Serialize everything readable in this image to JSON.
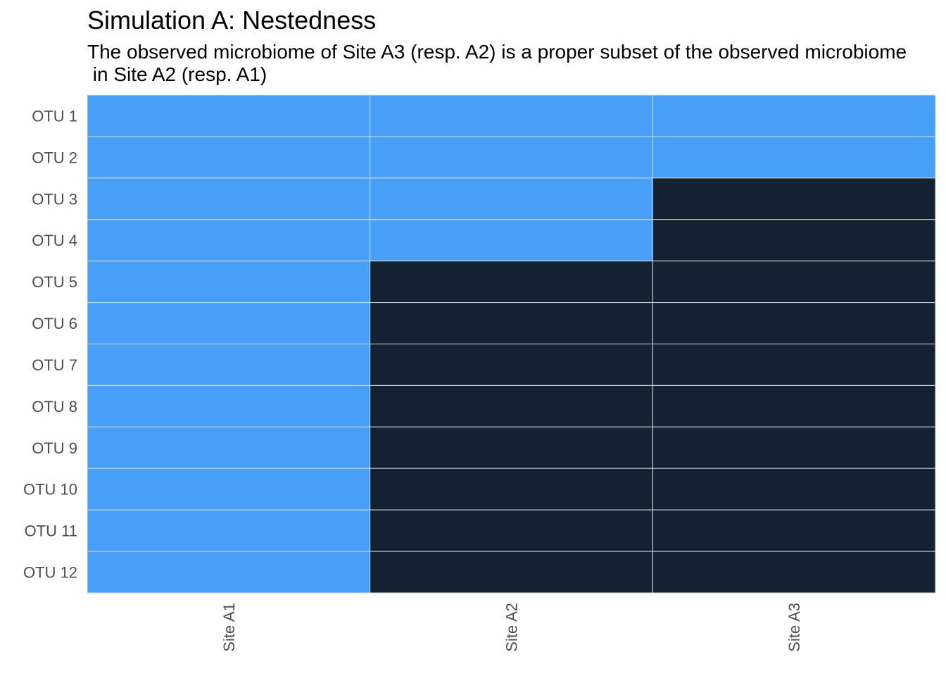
{
  "chart_data": {
    "type": "heatmap",
    "title": "Simulation A: Nestedness",
    "subtitle": "The observed microbiome of Site A3 (resp. A2) is a proper subset of the observed microbiome\n in Site A2 (resp. A1)",
    "xlabel": "",
    "ylabel": "",
    "x_categories": [
      "Site A1",
      "Site A2",
      "Site A3"
    ],
    "y_categories": [
      "OTU 1",
      "OTU 2",
      "OTU 3",
      "OTU 4",
      "OTU 5",
      "OTU 6",
      "OTU 7",
      "OTU 8",
      "OTU 9",
      "OTU 10",
      "OTU 11",
      "OTU 12"
    ],
    "values": [
      [
        1,
        1,
        1
      ],
      [
        1,
        1,
        1
      ],
      [
        1,
        1,
        0
      ],
      [
        1,
        1,
        0
      ],
      [
        1,
        0,
        0
      ],
      [
        1,
        0,
        0
      ],
      [
        1,
        0,
        0
      ],
      [
        1,
        0,
        0
      ],
      [
        1,
        0,
        0
      ],
      [
        1,
        0,
        0
      ],
      [
        1,
        0,
        0
      ],
      [
        1,
        0,
        0
      ]
    ],
    "colors": {
      "present": "#479FF8",
      "absent": "#132132",
      "grid": "#d9d9d9"
    },
    "legend": "none",
    "grid": true
  }
}
